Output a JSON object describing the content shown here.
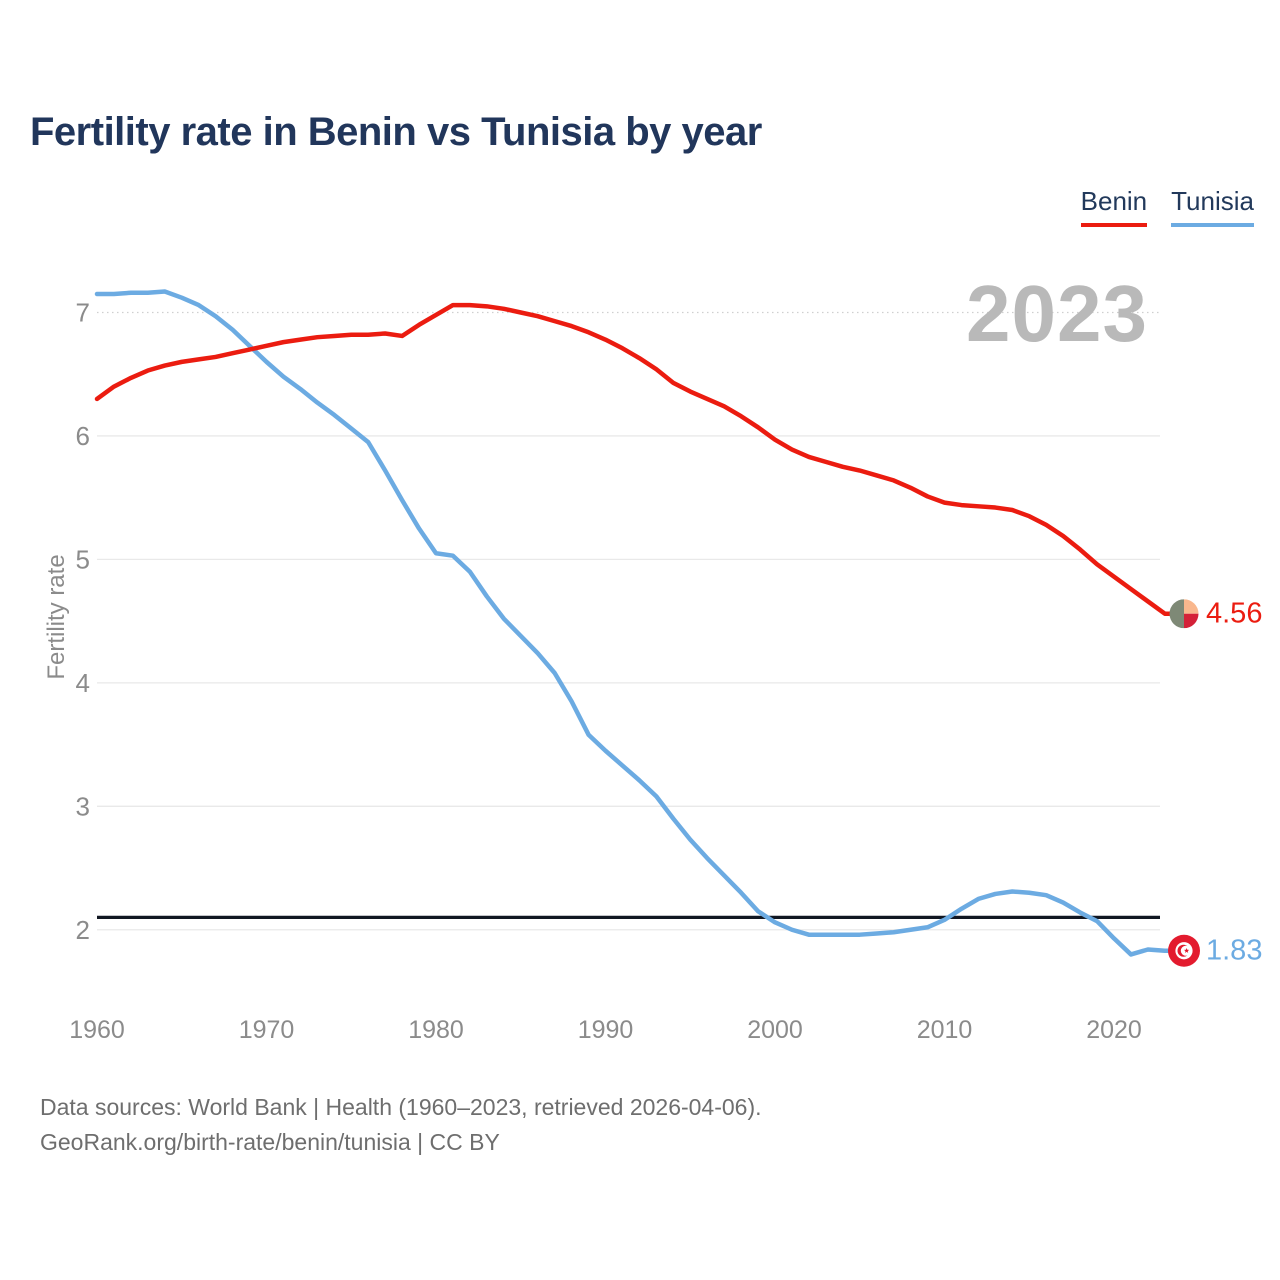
{
  "title": "Fertility rate in Benin vs Tunisia by year",
  "watermark": "2023",
  "legend": [
    {
      "label": "Benin",
      "color": "#eb1c10"
    },
    {
      "label": "Tunisia",
      "color": "#6cabe2"
    }
  ],
  "y_axis": {
    "label": "Fertility rate",
    "ticks": [
      7,
      6,
      5,
      4,
      3,
      2
    ]
  },
  "x_axis": {
    "ticks": [
      1960,
      1970,
      1980,
      1990,
      2000,
      2010,
      2020
    ]
  },
  "reference_line": {
    "value": 2.1,
    "color": "#111722"
  },
  "colors": {
    "grid": "#e9e9e9",
    "grid_dotted": "#cfcfcf",
    "tick_text": "#8b8b8b",
    "title_text": "#21365b",
    "watermark_text": "#b9b9b9"
  },
  "end_labels": {
    "benin": "4.56",
    "tunisia": "1.83"
  },
  "footer": {
    "line1": "Data sources: World Bank | Health (1960–2023, retrieved 2026-04-06).",
    "line2": "GeoRank.org/birth-rate/benin/tunisia | CC BY"
  },
  "chart_data": {
    "type": "line",
    "title": "Fertility rate in Benin vs Tunisia by year",
    "xlabel": "",
    "ylabel": "Fertility rate",
    "xlim": [
      1960,
      2023
    ],
    "ylim": [
      1.6,
      7.4
    ],
    "grid": "horizontal",
    "legend_position": "top-right",
    "reference_line_y": 2.1,
    "x": [
      1960,
      1961,
      1962,
      1963,
      1964,
      1965,
      1966,
      1967,
      1968,
      1969,
      1970,
      1971,
      1972,
      1973,
      1974,
      1975,
      1976,
      1977,
      1978,
      1979,
      1980,
      1981,
      1982,
      1983,
      1984,
      1985,
      1986,
      1987,
      1988,
      1989,
      1990,
      1991,
      1992,
      1993,
      1994,
      1995,
      1996,
      1997,
      1998,
      1999,
      2000,
      2001,
      2002,
      2003,
      2004,
      2005,
      2006,
      2007,
      2008,
      2009,
      2010,
      2011,
      2012,
      2013,
      2014,
      2015,
      2016,
      2017,
      2018,
      2019,
      2020,
      2021,
      2022,
      2023
    ],
    "series": [
      {
        "name": "Benin",
        "color": "#eb1c10",
        "end_label": "4.56",
        "flag_icon": "benin-flag-icon",
        "flag_colors": {
          "green": "#7e8976",
          "yellow": "#f9b78d",
          "red": "#d42138"
        },
        "values": [
          6.3,
          6.4,
          6.47,
          6.53,
          6.57,
          6.6,
          6.62,
          6.64,
          6.67,
          6.7,
          6.73,
          6.76,
          6.78,
          6.8,
          6.81,
          6.82,
          6.82,
          6.83,
          6.81,
          6.9,
          6.98,
          7.06,
          7.06,
          7.05,
          7.03,
          7.0,
          6.97,
          6.93,
          6.89,
          6.84,
          6.78,
          6.71,
          6.63,
          6.54,
          6.43,
          6.36,
          6.3,
          6.24,
          6.16,
          6.07,
          5.97,
          5.89,
          5.83,
          5.79,
          5.75,
          5.72,
          5.68,
          5.64,
          5.58,
          5.51,
          5.46,
          5.44,
          5.43,
          5.42,
          5.4,
          5.35,
          5.28,
          5.19,
          5.08,
          4.96,
          4.86,
          4.76,
          4.66,
          4.56
        ]
      },
      {
        "name": "Tunisia",
        "color": "#6cabe2",
        "end_label": "1.83",
        "flag_icon": "tunisia-flag-icon",
        "flag_colors": {
          "red": "#e31b2e",
          "white": "#ffffff"
        },
        "values": [
          7.15,
          7.15,
          7.16,
          7.16,
          7.17,
          7.12,
          7.06,
          6.97,
          6.86,
          6.73,
          6.6,
          6.48,
          6.38,
          6.27,
          6.17,
          6.06,
          5.95,
          5.72,
          5.48,
          5.25,
          5.05,
          5.03,
          4.9,
          4.7,
          4.52,
          4.38,
          4.24,
          4.08,
          3.85,
          3.58,
          3.45,
          3.33,
          3.21,
          3.08,
          2.9,
          2.73,
          2.58,
          2.44,
          2.3,
          2.15,
          2.06,
          2.0,
          1.96,
          1.96,
          1.96,
          1.96,
          1.97,
          1.98,
          2.0,
          2.02,
          2.08,
          2.17,
          2.25,
          2.29,
          2.31,
          2.3,
          2.28,
          2.22,
          2.14,
          2.07,
          1.93,
          1.8,
          1.84,
          1.83
        ]
      }
    ]
  }
}
